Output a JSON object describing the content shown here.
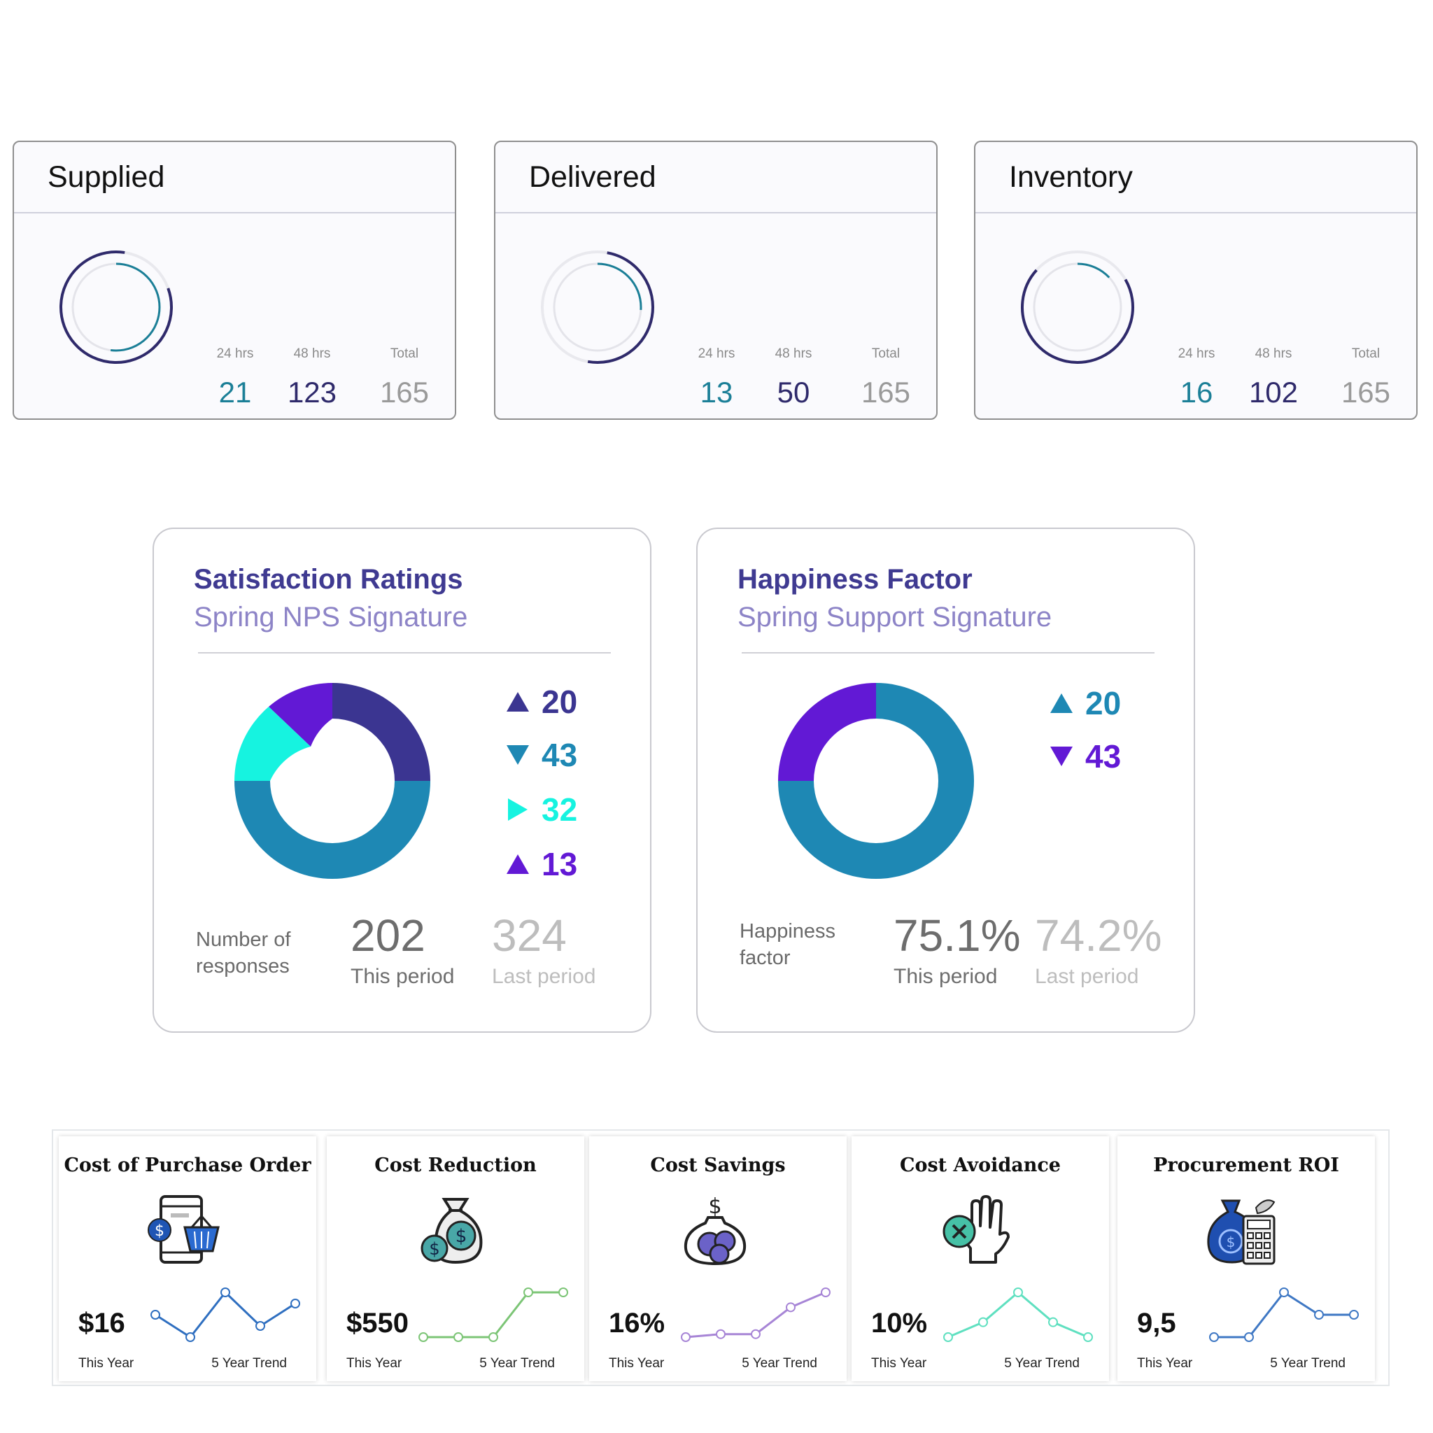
{
  "stat_cards": [
    {
      "title": "Supplied",
      "col1_label": "24 hrs",
      "col1_value": "21",
      "col2_label": "48 hrs",
      "col2_value": "123",
      "col3_label": "Total",
      "col3_value": "165",
      "progress": 0.52
    },
    {
      "title": "Delivered",
      "col1_label": "24 hrs",
      "col1_value": "13",
      "col2_label": "48 hrs",
      "col2_value": "50",
      "col3_label": "Total",
      "col3_value": "165",
      "progress": 0.26
    },
    {
      "title": "Inventory",
      "col1_label": "24 hrs",
      "col1_value": "16",
      "col2_label": "48 hrs",
      "col2_value": "102",
      "col3_label": "Total",
      "col3_value": "165",
      "progress": 0.13
    }
  ],
  "colors": {
    "teal": "#1b7f97",
    "navy": "#2f2a6b",
    "gray": "#9a9a9a",
    "indigo": "#3b3591",
    "blue": "#1e88b4",
    "cyan": "#16f3e0",
    "violet": "#6219d5"
  },
  "satisfaction": {
    "title": "Satisfaction Ratings",
    "subtitle": "Spring NPS Signature",
    "legend": [
      {
        "value": "20",
        "shape": "up-triangle",
        "color": "#3b3591"
      },
      {
        "value": "43",
        "shape": "down-triangle",
        "color": "#1e88b4"
      },
      {
        "value": "32",
        "shape": "right-triangle",
        "color": "#16f3e0"
      },
      {
        "value": "13",
        "shape": "up-triangle",
        "color": "#6219d5"
      }
    ],
    "donut": [
      20,
      43,
      32,
      13
    ],
    "foot_label": [
      "Number of",
      "responses"
    ],
    "this_value": "202",
    "this_label": "This period",
    "last_value": "324",
    "last_label": "Last period"
  },
  "happiness": {
    "title": "Happiness Factor",
    "subtitle": "Spring Support Signature",
    "legend": [
      {
        "value": "20",
        "shape": "up-triangle",
        "color": "#1e88b4"
      },
      {
        "value": "43",
        "shape": "down-triangle",
        "color": "#6219d5"
      }
    ],
    "donut_fraction_violet": 0.25,
    "foot_label": [
      "Happiness",
      "factor"
    ],
    "this_value": "75.1%",
    "this_label": "This period",
    "last_value": "74.2%",
    "last_label": "Last period"
  },
  "kpis": [
    {
      "title": "Cost of Purchase Order",
      "value": "$16",
      "this_year": "This Year",
      "trend_label": "5 Year Trend",
      "icon": "basket-dollar-icon",
      "line_color": "#2f6fc0",
      "trend": [
        3,
        1,
        5,
        2,
        4
      ]
    },
    {
      "title": "Cost Reduction",
      "value": "$550",
      "this_year": "This Year",
      "trend_label": "5 Year Trend",
      "icon": "money-bag-icon",
      "line_color": "#7cc576",
      "trend": [
        1,
        1,
        1,
        3,
        3
      ]
    },
    {
      "title": "Cost Savings",
      "value": "16%",
      "this_year": "This Year",
      "trend_label": "5 Year Trend",
      "icon": "savings-jar-icon",
      "line_color": "#a785d6",
      "trend": [
        1,
        1.2,
        1.2,
        3,
        4
      ]
    },
    {
      "title": "Cost Avoidance",
      "value": "10%",
      "this_year": "This Year",
      "trend_label": "5 Year Trend",
      "icon": "hand-stop-icon",
      "line_color": "#5fe0c0",
      "trend": [
        1,
        2,
        4,
        2,
        1
      ]
    },
    {
      "title": "Procurement ROI",
      "value": "9,5",
      "this_year": "This Year",
      "trend_label": "5 Year Trend",
      "icon": "roi-calculator-icon",
      "line_color": "#3f78c4",
      "trend": [
        1,
        1,
        5,
        3,
        3
      ]
    }
  ]
}
